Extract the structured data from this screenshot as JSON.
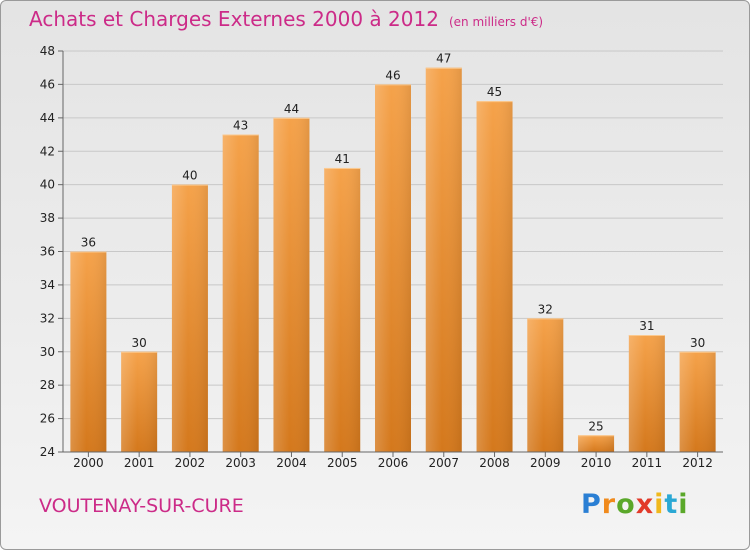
{
  "header": {
    "title": "Achats et Charges Externes 2000 à 2012",
    "unit": "(en milliers d'€)"
  },
  "footer": {
    "city": "VOUTENAY-SUR-CURE",
    "logo_letters": [
      "P",
      "r",
      "o",
      "x",
      "i",
      "t",
      "i"
    ],
    "logo_colors": [
      "#2a7fd4",
      "#f08a1c",
      "#5aa82a",
      "#e23a2a",
      "#f0b81c",
      "#2aa8d4",
      "#5aa82a"
    ]
  },
  "colors": {
    "title": "#cc2b88",
    "bar_light": "#f5a24a",
    "bar_dark": "#d4781c",
    "grid": "#c8c8c8"
  },
  "chart_data": {
    "type": "bar",
    "title": "Achats et Charges Externes 2000 à 2012",
    "subtitle": "(en milliers d'€)",
    "categories": [
      "2000",
      "2001",
      "2002",
      "2003",
      "2004",
      "2005",
      "2006",
      "2007",
      "2008",
      "2009",
      "2010",
      "2011",
      "2012"
    ],
    "values": [
      36,
      30,
      40,
      43,
      44,
      41,
      46,
      47,
      45,
      32,
      25,
      31,
      30
    ],
    "ylim": [
      24,
      48
    ],
    "yticks": [
      24,
      26,
      28,
      30,
      32,
      34,
      36,
      38,
      40,
      42,
      44,
      46,
      48
    ],
    "grid": true,
    "xlabel": "",
    "ylabel": ""
  }
}
